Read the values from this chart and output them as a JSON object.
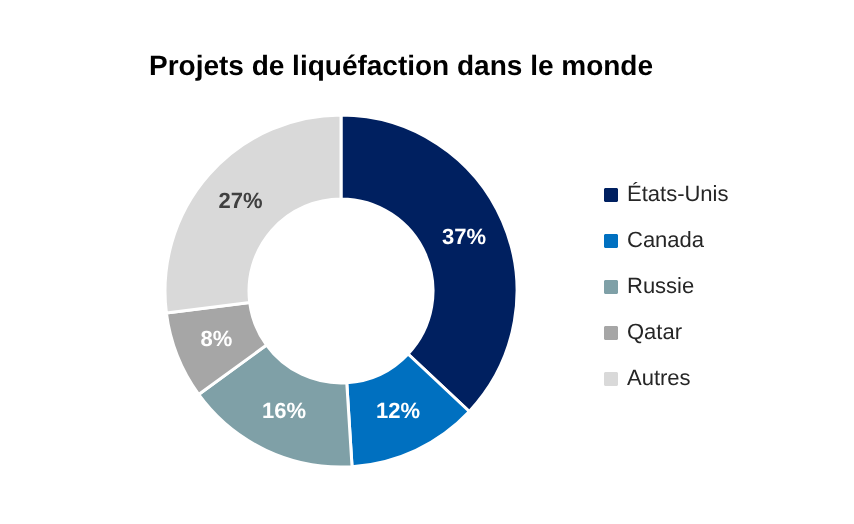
{
  "chart_data": {
    "type": "donut",
    "title": "Projets de liquéfaction dans le monde",
    "categories": [
      "États-Unis",
      "Canada",
      "Russie",
      "Qatar",
      "Autres"
    ],
    "values": [
      37,
      12,
      16,
      8,
      27
    ],
    "value_labels": [
      "37%",
      "12%",
      "16%",
      "8%",
      "27%"
    ],
    "colors": [
      "#002060",
      "#0070c0",
      "#7fa0a7",
      "#a6a6a6",
      "#d9d9d9"
    ],
    "legend": "right"
  }
}
